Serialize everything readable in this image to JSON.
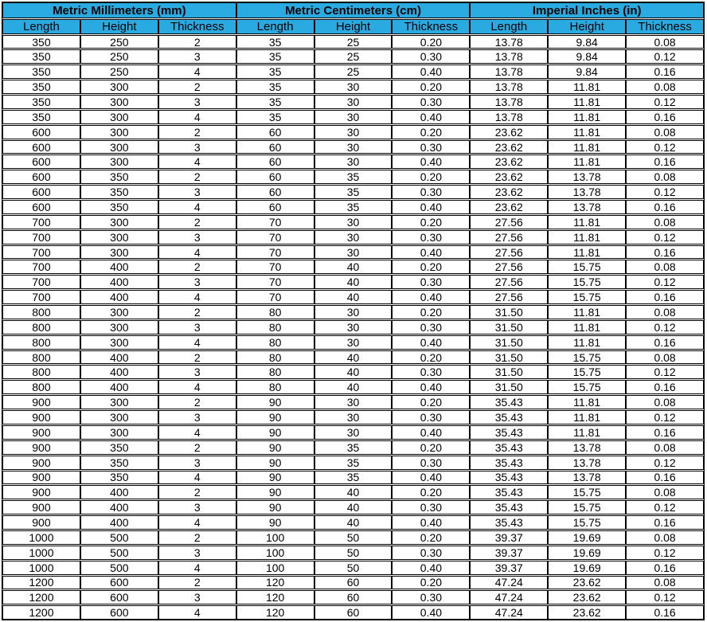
{
  "table": {
    "groups": [
      {
        "label": "Metric Millimeters (mm)"
      },
      {
        "label": "Metric Centimeters (cm)"
      },
      {
        "label": "Imperial Inches (in)"
      }
    ],
    "columns": [
      "Length",
      "Height",
      "Thickness"
    ],
    "rows": [
      [
        "350",
        "250",
        "2",
        "35",
        "25",
        "0.20",
        "13.78",
        "9.84",
        "0.08"
      ],
      [
        "350",
        "250",
        "3",
        "35",
        "25",
        "0.30",
        "13.78",
        "9.84",
        "0.12"
      ],
      [
        "350",
        "250",
        "4",
        "35",
        "25",
        "0.40",
        "13.78",
        "9.84",
        "0.16"
      ],
      [
        "350",
        "300",
        "2",
        "35",
        "30",
        "0.20",
        "13.78",
        "11.81",
        "0.08"
      ],
      [
        "350",
        "300",
        "3",
        "35",
        "30",
        "0.30",
        "13.78",
        "11.81",
        "0.12"
      ],
      [
        "350",
        "300",
        "4",
        "35",
        "30",
        "0.40",
        "13.78",
        "11.81",
        "0.16"
      ],
      [
        "600",
        "300",
        "2",
        "60",
        "30",
        "0.20",
        "23.62",
        "11.81",
        "0.08"
      ],
      [
        "600",
        "300",
        "3",
        "60",
        "30",
        "0.30",
        "23.62",
        "11.81",
        "0.12"
      ],
      [
        "600",
        "300",
        "4",
        "60",
        "30",
        "0.40",
        "23.62",
        "11.81",
        "0.16"
      ],
      [
        "600",
        "350",
        "2",
        "60",
        "35",
        "0.20",
        "23.62",
        "13.78",
        "0.08"
      ],
      [
        "600",
        "350",
        "3",
        "60",
        "35",
        "0.30",
        "23.62",
        "13.78",
        "0.12"
      ],
      [
        "600",
        "350",
        "4",
        "60",
        "35",
        "0.40",
        "23.62",
        "13.78",
        "0.16"
      ],
      [
        "700",
        "300",
        "2",
        "70",
        "30",
        "0.20",
        "27.56",
        "11.81",
        "0.08"
      ],
      [
        "700",
        "300",
        "3",
        "70",
        "30",
        "0.30",
        "27.56",
        "11.81",
        "0.12"
      ],
      [
        "700",
        "300",
        "4",
        "70",
        "30",
        "0.40",
        "27.56",
        "11.81",
        "0.16"
      ],
      [
        "700",
        "400",
        "2",
        "70",
        "40",
        "0.20",
        "27.56",
        "15.75",
        "0.08"
      ],
      [
        "700",
        "400",
        "3",
        "70",
        "40",
        "0.30",
        "27.56",
        "15.75",
        "0.12"
      ],
      [
        "700",
        "400",
        "4",
        "70",
        "40",
        "0.40",
        "27.56",
        "15.75",
        "0.16"
      ],
      [
        "800",
        "300",
        "2",
        "80",
        "30",
        "0.20",
        "31.50",
        "11.81",
        "0.08"
      ],
      [
        "800",
        "300",
        "3",
        "80",
        "30",
        "0.30",
        "31.50",
        "11.81",
        "0.12"
      ],
      [
        "800",
        "300",
        "4",
        "80",
        "30",
        "0.40",
        "31.50",
        "11.81",
        "0.16"
      ],
      [
        "800",
        "400",
        "2",
        "80",
        "40",
        "0.20",
        "31.50",
        "15.75",
        "0.08"
      ],
      [
        "800",
        "400",
        "3",
        "80",
        "40",
        "0.30",
        "31.50",
        "15.75",
        "0.12"
      ],
      [
        "800",
        "400",
        "4",
        "80",
        "40",
        "0.40",
        "31.50",
        "15.75",
        "0.16"
      ],
      [
        "900",
        "300",
        "2",
        "90",
        "30",
        "0.20",
        "35.43",
        "11.81",
        "0.08"
      ],
      [
        "900",
        "300",
        "3",
        "90",
        "30",
        "0.30",
        "35.43",
        "11.81",
        "0.12"
      ],
      [
        "900",
        "300",
        "4",
        "90",
        "30",
        "0.40",
        "35.43",
        "11.81",
        "0.16"
      ],
      [
        "900",
        "350",
        "2",
        "90",
        "35",
        "0.20",
        "35.43",
        "13.78",
        "0.08"
      ],
      [
        "900",
        "350",
        "3",
        "90",
        "35",
        "0.30",
        "35.43",
        "13.78",
        "0.12"
      ],
      [
        "900",
        "350",
        "4",
        "90",
        "35",
        "0.40",
        "35.43",
        "13.78",
        "0.16"
      ],
      [
        "900",
        "400",
        "2",
        "90",
        "40",
        "0.20",
        "35.43",
        "15.75",
        "0.08"
      ],
      [
        "900",
        "400",
        "3",
        "90",
        "40",
        "0.30",
        "35.43",
        "15.75",
        "0.12"
      ],
      [
        "900",
        "400",
        "4",
        "90",
        "40",
        "0.40",
        "35.43",
        "15.75",
        "0.16"
      ],
      [
        "1000",
        "500",
        "2",
        "100",
        "50",
        "0.20",
        "39.37",
        "19.69",
        "0.08"
      ],
      [
        "1000",
        "500",
        "3",
        "100",
        "50",
        "0.30",
        "39.37",
        "19.69",
        "0.12"
      ],
      [
        "1000",
        "500",
        "4",
        "100",
        "50",
        "0.40",
        "39.37",
        "19.69",
        "0.16"
      ],
      [
        "1200",
        "600",
        "2",
        "120",
        "60",
        "0.20",
        "47.24",
        "23.62",
        "0.08"
      ],
      [
        "1200",
        "600",
        "3",
        "120",
        "60",
        "0.30",
        "47.24",
        "23.62",
        "0.12"
      ],
      [
        "1200",
        "600",
        "4",
        "120",
        "60",
        "0.40",
        "47.24",
        "23.62",
        "0.16"
      ]
    ]
  },
  "colors": {
    "header_bg": "#29abe2",
    "border": "#000000",
    "text": "#000000",
    "background": "#ffffff"
  }
}
